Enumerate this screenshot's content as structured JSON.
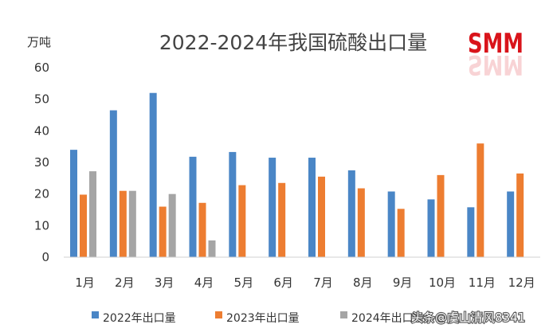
{
  "logo": {
    "text": "SMM"
  },
  "watermark": {
    "text": "头条@虞山清风8341"
  },
  "colors": {
    "s2022": "#4a86c6",
    "s2023": "#ed7d31",
    "s2024": "#a5a5a5"
  },
  "chart_data": {
    "type": "bar",
    "title": "2022-2024年我国硫酸出口量",
    "ylabel": "万吨",
    "xlabel": "",
    "ylim": [
      0,
      60
    ],
    "yticks": [
      0,
      10,
      20,
      30,
      40,
      50,
      60
    ],
    "grid": false,
    "legend_position": "bottom",
    "categories": [
      "1月",
      "2月",
      "3月",
      "4月",
      "5月",
      "6月",
      "7月",
      "8月",
      "9月",
      "10月",
      "11月",
      "12月"
    ],
    "series": [
      {
        "name": "2022年出口量",
        "values": [
          34,
          46.5,
          52,
          31.8,
          33.3,
          31.5,
          31.5,
          27.5,
          20.8,
          18.3,
          15.8,
          20.8
        ]
      },
      {
        "name": "2023年出口量",
        "values": [
          19.8,
          21,
          16,
          17.2,
          22.8,
          23.5,
          25.5,
          21.8,
          15.3,
          26,
          36,
          26.5
        ]
      },
      {
        "name": "2024年出口量",
        "values": [
          27.2,
          21,
          20,
          5.3,
          null,
          null,
          null,
          null,
          null,
          null,
          null,
          null
        ]
      }
    ]
  }
}
